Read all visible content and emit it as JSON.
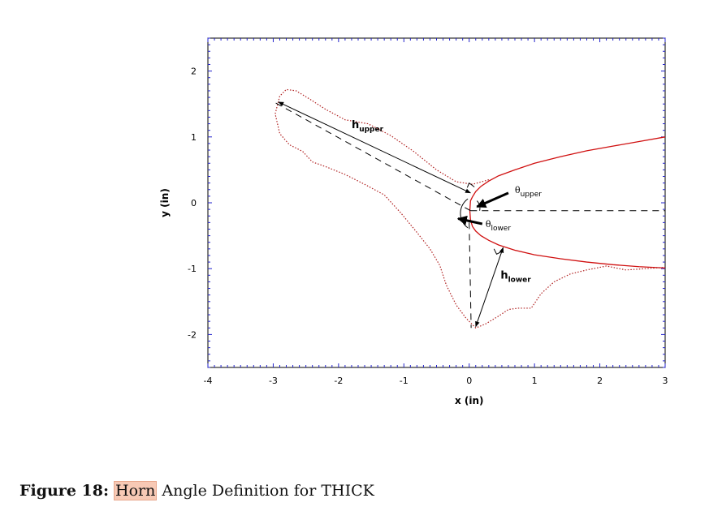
{
  "chart_data": {
    "type": "line",
    "xlabel": "x (in)",
    "ylabel": "y (in)",
    "xlim": [
      -4,
      3
    ],
    "ylim": [
      -2.5,
      2.5
    ],
    "xticks": [
      "-4",
      "-3",
      "-2",
      "-1",
      "0",
      "1",
      "2",
      "3"
    ],
    "yticks": [
      "2",
      "1",
      "0",
      "-1",
      "-2"
    ],
    "ytick_values": [
      2,
      1,
      0,
      -1,
      -2
    ],
    "series": [
      {
        "style": "solid",
        "color": "#d01010",
        "x": [
          3.0,
          2.6,
          2.2,
          1.8,
          1.4,
          1.0,
          0.7,
          0.45,
          0.3,
          0.18,
          0.1,
          0.05,
          0.02,
          0.01,
          0.02,
          0.05,
          0.1,
          0.18,
          0.3,
          0.45,
          0.7,
          1.0,
          1.4,
          1.8,
          2.2,
          2.6,
          3.0
        ],
        "y": [
          1.0,
          0.93,
          0.86,
          0.79,
          0.7,
          0.6,
          0.5,
          0.41,
          0.33,
          0.25,
          0.17,
          0.09,
          0.03,
          -0.12,
          -0.26,
          -0.36,
          -0.43,
          -0.5,
          -0.57,
          -0.64,
          -0.72,
          -0.79,
          -0.85,
          -0.9,
          -0.94,
          -0.97,
          -0.99
        ]
      },
      {
        "style": "dotted",
        "color": "#b02020",
        "x": [
          0.3,
          0.05,
          -0.2,
          -0.5,
          -0.85,
          -1.2,
          -1.55,
          -1.9,
          -2.2,
          -2.45,
          -2.65,
          -2.8,
          -2.9,
          -2.97,
          -2.9,
          -2.75,
          -2.55,
          -2.4,
          -2.2,
          -1.9,
          -1.6,
          -1.3,
          -1.05,
          -0.8,
          -0.6,
          -0.45,
          -0.35,
          -0.2,
          -0.05,
          0.1,
          0.25,
          0.45,
          0.6,
          0.75,
          0.95,
          1.1,
          1.3,
          1.55,
          1.8,
          2.1,
          2.4,
          2.7,
          3.0
        ],
        "y": [
          0.35,
          0.28,
          0.32,
          0.5,
          0.78,
          1.02,
          1.2,
          1.26,
          1.42,
          1.58,
          1.7,
          1.72,
          1.62,
          1.35,
          1.05,
          0.88,
          0.78,
          0.62,
          0.55,
          0.43,
          0.28,
          0.12,
          -0.15,
          -0.45,
          -0.7,
          -0.95,
          -1.25,
          -1.55,
          -1.75,
          -1.9,
          -1.84,
          -1.72,
          -1.62,
          -1.6,
          -1.6,
          -1.38,
          -1.2,
          -1.08,
          -1.02,
          -0.96,
          -1.02,
          -1.0,
          -0.98
        ]
      }
    ],
    "annotations": [
      {
        "text": "h",
        "sub": "upper",
        "x": -1.8,
        "y": 1.13
      },
      {
        "text": "h",
        "sub": "lower",
        "x": 0.48,
        "y": -1.15
      },
      {
        "text": "θ",
        "sub": "upper",
        "x": 0.7,
        "y": 0.15
      },
      {
        "text": "θ",
        "sub": "lower",
        "x": 0.25,
        "y": -0.37
      }
    ]
  },
  "caption": {
    "label": "Figure 18:",
    "highlight": "Horn",
    "rest": " Angle Definition for THICK"
  }
}
